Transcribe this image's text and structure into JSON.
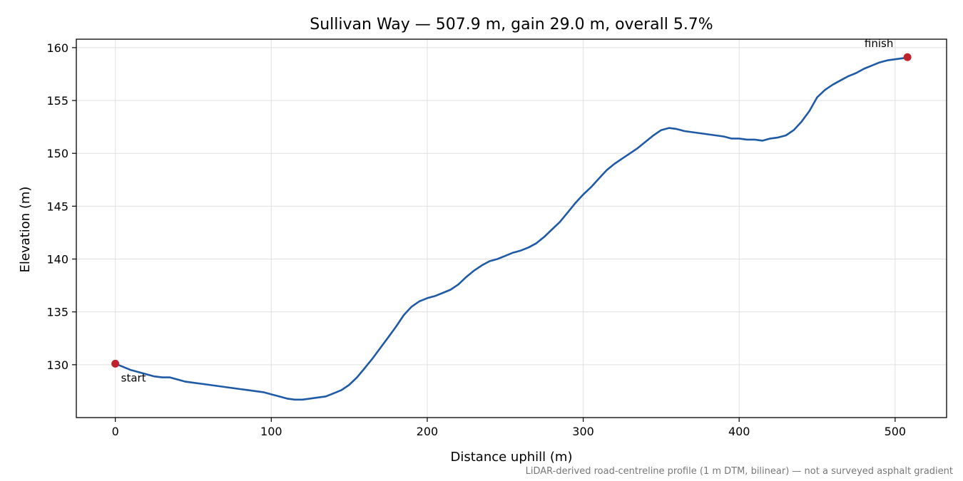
{
  "chart_data": {
    "type": "line",
    "title": "Sullivan Way — 507.9 m, gain 29.0 m, overall 5.7%",
    "xlabel": "Distance uphill (m)",
    "ylabel": "Elevation (m)",
    "xlim": [
      -25,
      533
    ],
    "ylim": [
      125,
      160.8
    ],
    "xticks": [
      0,
      100,
      200,
      300,
      400,
      500
    ],
    "yticks": [
      130,
      135,
      140,
      145,
      150,
      155,
      160
    ],
    "grid": true,
    "colors": {
      "line": "#1f5aa6",
      "marker": "#c0222b",
      "grid": "#e0e0e0"
    },
    "series": [
      {
        "x": [
          0,
          5,
          10,
          15,
          20,
          25,
          30,
          35,
          40,
          45,
          50,
          55,
          60,
          65,
          70,
          75,
          80,
          85,
          90,
          95,
          100,
          105,
          110,
          115,
          120,
          125,
          130,
          135,
          140,
          145,
          150,
          155,
          160,
          165,
          170,
          175,
          180,
          185,
          190,
          195,
          200,
          205,
          210,
          215,
          220,
          225,
          230,
          235,
          240,
          245,
          250,
          255,
          260,
          265,
          270,
          275,
          280,
          285,
          290,
          295,
          300,
          305,
          310,
          315,
          320,
          325,
          330,
          335,
          340,
          345,
          350,
          355,
          360,
          365,
          370,
          375,
          380,
          385,
          390,
          395,
          400,
          405,
          410,
          415,
          420,
          425,
          430,
          435,
          440,
          445,
          450,
          455,
          460,
          465,
          470,
          475,
          480,
          485,
          490,
          495,
          500,
          505,
          507.9
        ],
        "y": [
          130.1,
          129.8,
          129.5,
          129.3,
          129.1,
          128.9,
          128.8,
          128.8,
          128.6,
          128.4,
          128.3,
          128.2,
          128.1,
          128.0,
          127.9,
          127.8,
          127.7,
          127.6,
          127.5,
          127.4,
          127.2,
          127.0,
          126.8,
          126.7,
          126.7,
          126.8,
          126.9,
          127.0,
          127.3,
          127.6,
          128.1,
          128.8,
          129.7,
          130.6,
          131.6,
          132.6,
          133.6,
          134.7,
          135.5,
          136.0,
          136.3,
          136.5,
          136.8,
          137.1,
          137.6,
          138.3,
          138.9,
          139.4,
          139.8,
          140.0,
          140.3,
          140.6,
          140.8,
          141.1,
          141.5,
          142.1,
          142.8,
          143.5,
          144.4,
          145.3,
          146.1,
          146.8,
          147.6,
          148.4,
          149.0,
          149.5,
          150.0,
          150.5,
          151.1,
          151.7,
          152.2,
          152.4,
          152.3,
          152.1,
          152.0,
          151.9,
          151.8,
          151.7,
          151.6,
          151.4,
          151.4,
          151.3,
          151.3,
          151.2,
          151.4,
          151.5,
          151.7,
          152.2,
          153.0,
          154.0,
          155.3,
          156.0,
          156.5,
          156.9,
          157.3,
          157.6,
          158.0,
          158.3,
          158.6,
          158.8,
          158.9,
          159.0,
          159.1
        ]
      }
    ],
    "annotations": [
      {
        "text": "start",
        "x": 0,
        "y": 130.1
      },
      {
        "text": "finish",
        "x": 507.9,
        "y": 159.1
      }
    ],
    "footnote": "LiDAR-derived road-centreline profile (1 m DTM, bilinear) — not a surveyed asphalt gradient"
  }
}
